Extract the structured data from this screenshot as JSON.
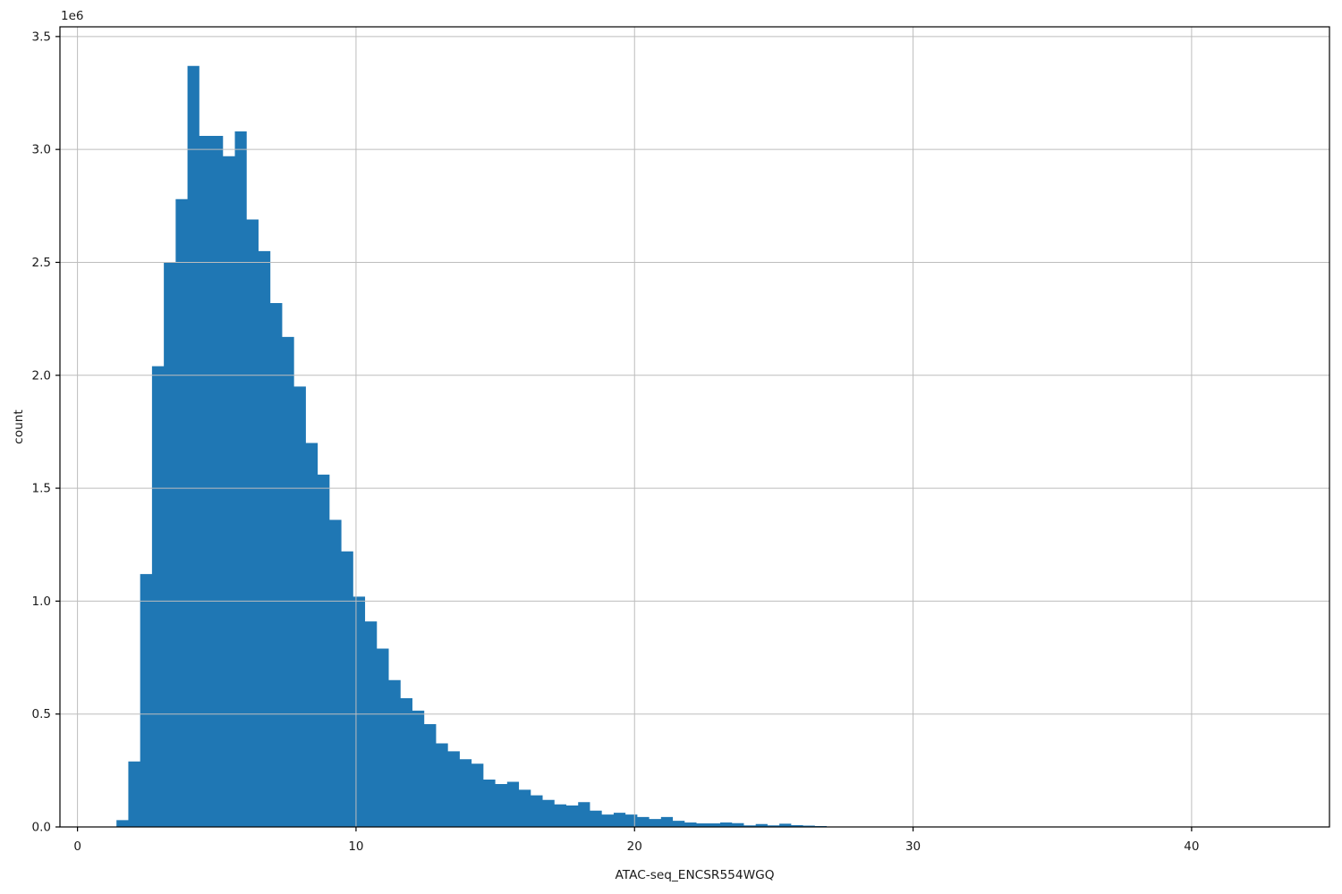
{
  "chart_data": {
    "type": "bar",
    "subtype": "histogram",
    "title": "",
    "xlabel": "ATAC-seq_ENCSR554WGQ",
    "ylabel": "count",
    "y_scale_offset_text": "1e6",
    "xlim": [
      -0.63,
      44.95
    ],
    "ylim": [
      0,
      3543000
    ],
    "grid": true,
    "legend_position": "none",
    "x_ticks": [
      {
        "value": 0,
        "label": "0"
      },
      {
        "value": 10,
        "label": "10"
      },
      {
        "value": 20,
        "label": "20"
      },
      {
        "value": 30,
        "label": "30"
      },
      {
        "value": 40,
        "label": "40"
      }
    ],
    "y_ticks": [
      {
        "value": 0,
        "label": "0.0"
      },
      {
        "value": 500000,
        "label": "0.5"
      },
      {
        "value": 1000000,
        "label": "1.0"
      },
      {
        "value": 1500000,
        "label": "1.5"
      },
      {
        "value": 2000000,
        "label": "2.0"
      },
      {
        "value": 2500000,
        "label": "2.5"
      },
      {
        "value": 3000000,
        "label": "3.0"
      },
      {
        "value": 3500000,
        "label": "3.5"
      }
    ],
    "colors": {
      "bar": "#1f77b4",
      "grid": "#bdbdbd",
      "axis": "#000000",
      "text": "#1a1a1a",
      "background": "#ffffff"
    },
    "bins": {
      "start": 1.4,
      "width": 0.425
    },
    "counts": [
      30000,
      290000,
      1120000,
      2040000,
      2500000,
      2780000,
      3370000,
      3060000,
      3060000,
      2970000,
      3080000,
      2690000,
      2550000,
      2320000,
      2170000,
      1950000,
      1700000,
      1560000,
      1360000,
      1220000,
      1020000,
      910000,
      790000,
      650000,
      570000,
      515000,
      455000,
      370000,
      335000,
      300000,
      280000,
      210000,
      190000,
      200000,
      165000,
      140000,
      120000,
      100000,
      95000,
      110000,
      72000,
      55000,
      63000,
      55000,
      44000,
      35000,
      44000,
      27000,
      20000,
      16000,
      16000,
      20000,
      17000,
      7000,
      13000,
      7000,
      14500,
      8000,
      6000,
      4000
    ]
  }
}
